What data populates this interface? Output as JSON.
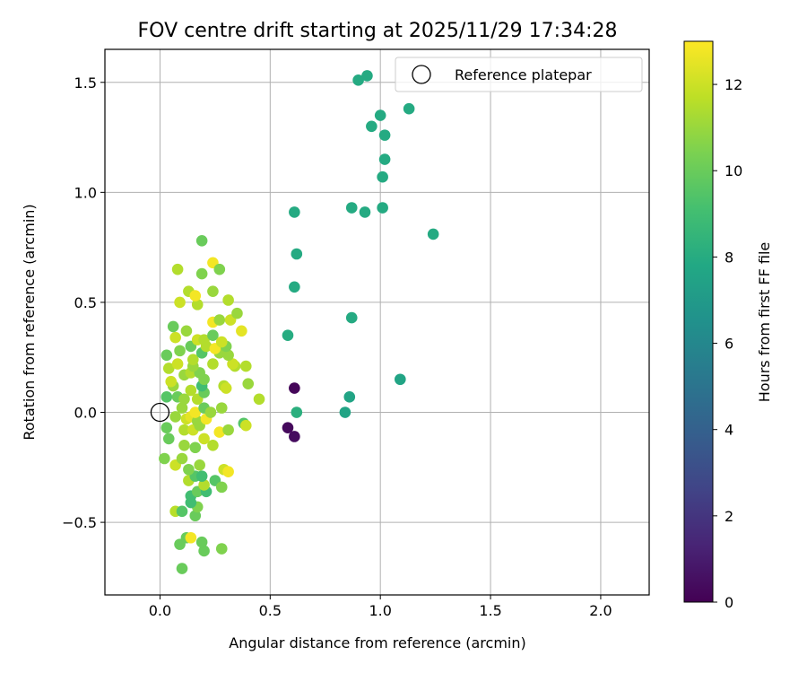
{
  "chart_data": {
    "type": "scatter",
    "title": "FOV centre drift starting at 2025/11/29 17:34:28",
    "xlabel": "Angular distance from reference (arcmin)",
    "ylabel": "Rotation from reference (arcmin)",
    "xlim": [
      -0.25,
      2.22
    ],
    "ylim": [
      -0.83,
      1.65
    ],
    "xticks": [
      0.0,
      0.5,
      1.0,
      1.5,
      2.0
    ],
    "yticks": [
      -0.5,
      0.0,
      0.5,
      1.0,
      1.5
    ],
    "xtick_labels": [
      "0.0",
      "0.5",
      "1.0",
      "1.5",
      "2.0"
    ],
    "ytick_labels": [
      "−0.5",
      "0.0",
      "0.5",
      "1.0",
      "1.5"
    ],
    "grid": true,
    "legend": {
      "placement": "upper-right",
      "entries": [
        "Reference platepar"
      ]
    },
    "reference_point": {
      "x": 0.0,
      "y": 0.0,
      "label": "Reference platepar"
    },
    "colorbar": {
      "label": "Hours from first FF file",
      "range": [
        0,
        13
      ],
      "ticks": [
        0,
        2,
        4,
        6,
        8,
        10,
        12
      ],
      "tick_labels": [
        "0",
        "2",
        "4",
        "6",
        "8",
        "10",
        "12"
      ],
      "colormap": "viridis"
    },
    "points": [
      [
        0.61,
        0.11,
        0.2
      ],
      [
        0.58,
        -0.07,
        0.3
      ],
      [
        0.61,
        -0.11,
        0.4
      ],
      [
        0.84,
        0.0,
        7.6
      ],
      [
        0.86,
        0.07,
        7.6
      ],
      [
        1.09,
        0.15,
        7.6
      ],
      [
        0.62,
        0.0,
        8.2
      ],
      [
        0.58,
        0.35,
        8.0
      ],
      [
        0.87,
        0.43,
        7.9
      ],
      [
        0.61,
        0.57,
        7.9
      ],
      [
        0.62,
        0.72,
        7.9
      ],
      [
        0.61,
        0.91,
        7.9
      ],
      [
        0.87,
        0.93,
        7.9
      ],
      [
        0.93,
        0.91,
        7.9
      ],
      [
        1.01,
        0.93,
        7.9
      ],
      [
        1.24,
        0.81,
        7.9
      ],
      [
        1.01,
        1.07,
        7.9
      ],
      [
        1.02,
        1.15,
        7.9
      ],
      [
        1.02,
        1.26,
        7.9
      ],
      [
        0.96,
        1.3,
        7.9
      ],
      [
        1.0,
        1.35,
        7.9
      ],
      [
        1.13,
        1.38,
        7.9
      ],
      [
        0.9,
        1.51,
        7.9
      ],
      [
        0.94,
        1.53,
        7.9
      ],
      [
        0.2,
        -0.63,
        10.0
      ],
      [
        0.28,
        -0.62,
        10.5
      ],
      [
        0.1,
        -0.71,
        10.0
      ],
      [
        0.09,
        -0.6,
        10.0
      ],
      [
        0.19,
        -0.59,
        10.0
      ],
      [
        0.12,
        -0.57,
        10.0
      ],
      [
        0.14,
        -0.57,
        12.8
      ],
      [
        0.07,
        -0.45,
        11.6
      ],
      [
        0.1,
        -0.45,
        9.5
      ],
      [
        0.16,
        -0.47,
        10.0
      ],
      [
        0.17,
        -0.43,
        10.5
      ],
      [
        0.14,
        -0.41,
        9.0
      ],
      [
        0.14,
        -0.38,
        9.0
      ],
      [
        0.17,
        -0.36,
        10.0
      ],
      [
        0.21,
        -0.36,
        9.0
      ],
      [
        0.2,
        -0.33,
        11.5
      ],
      [
        0.25,
        -0.31,
        9.5
      ],
      [
        0.28,
        -0.34,
        10.5
      ],
      [
        0.13,
        -0.31,
        11.5
      ],
      [
        0.16,
        -0.29,
        9.5
      ],
      [
        0.19,
        -0.29,
        9.0
      ],
      [
        0.29,
        -0.26,
        12.0
      ],
      [
        0.31,
        -0.27,
        12.8
      ],
      [
        0.13,
        -0.26,
        10.5
      ],
      [
        0.18,
        -0.24,
        11.0
      ],
      [
        0.07,
        -0.24,
        12.0
      ],
      [
        0.02,
        -0.21,
        10.5
      ],
      [
        0.1,
        -0.21,
        11.0
      ],
      [
        0.11,
        -0.15,
        11.0
      ],
      [
        0.16,
        -0.16,
        10.5
      ],
      [
        0.24,
        -0.15,
        11.5
      ],
      [
        0.2,
        -0.12,
        12.0
      ],
      [
        0.04,
        -0.12,
        10.0
      ],
      [
        0.03,
        -0.07,
        10.0
      ],
      [
        0.11,
        -0.08,
        11.5
      ],
      [
        0.15,
        -0.08,
        12.0
      ],
      [
        0.18,
        -0.06,
        11.0
      ],
      [
        0.27,
        -0.09,
        12.8
      ],
      [
        0.31,
        -0.08,
        11.0
      ],
      [
        0.38,
        -0.05,
        9.5
      ],
      [
        0.39,
        -0.06,
        12.0
      ],
      [
        0.07,
        -0.02,
        11.0
      ],
      [
        0.12,
        -0.03,
        12.0
      ],
      [
        0.14,
        -0.02,
        12.5
      ],
      [
        0.17,
        -0.04,
        11.0
      ],
      [
        0.21,
        -0.03,
        12.8
      ],
      [
        0.1,
        0.02,
        11.0
      ],
      [
        0.16,
        0.0,
        12.8
      ],
      [
        0.2,
        0.02,
        10.0
      ],
      [
        0.23,
        0.0,
        11.0
      ],
      [
        0.28,
        0.02,
        11.0
      ],
      [
        0.45,
        0.06,
        11.5
      ],
      [
        0.03,
        0.07,
        9.5
      ],
      [
        0.08,
        0.07,
        10.0
      ],
      [
        0.11,
        0.06,
        11.0
      ],
      [
        0.17,
        0.06,
        11.5
      ],
      [
        0.2,
        0.09,
        10.0
      ],
      [
        0.06,
        0.12,
        11.0
      ],
      [
        0.14,
        0.1,
        11.5
      ],
      [
        0.19,
        0.12,
        9.0
      ],
      [
        0.2,
        0.15,
        10.5
      ],
      [
        0.29,
        0.12,
        11.5
      ],
      [
        0.3,
        0.11,
        12.0
      ],
      [
        0.4,
        0.13,
        11.0
      ],
      [
        0.05,
        0.14,
        12.0
      ],
      [
        0.11,
        0.17,
        11.0
      ],
      [
        0.14,
        0.18,
        11.5
      ],
      [
        0.18,
        0.18,
        10.5
      ],
      [
        0.04,
        0.2,
        11.5
      ],
      [
        0.08,
        0.22,
        12.0
      ],
      [
        0.15,
        0.21,
        11.0
      ],
      [
        0.24,
        0.22,
        11.5
      ],
      [
        0.34,
        0.21,
        11.5
      ],
      [
        0.39,
        0.21,
        11.5
      ],
      [
        0.33,
        0.22,
        12.0
      ],
      [
        0.03,
        0.26,
        10.0
      ],
      [
        0.15,
        0.24,
        11.5
      ],
      [
        0.19,
        0.27,
        9.5
      ],
      [
        0.27,
        0.27,
        11.0
      ],
      [
        0.31,
        0.26,
        11.0
      ],
      [
        0.09,
        0.28,
        10.5
      ],
      [
        0.14,
        0.3,
        10.0
      ],
      [
        0.21,
        0.3,
        11.5
      ],
      [
        0.25,
        0.29,
        12.8
      ],
      [
        0.3,
        0.3,
        10.5
      ],
      [
        0.17,
        0.33,
        12.0
      ],
      [
        0.2,
        0.33,
        11.5
      ],
      [
        0.24,
        0.35,
        10.0
      ],
      [
        0.07,
        0.34,
        12.0
      ],
      [
        0.28,
        0.32,
        12.0
      ],
      [
        0.06,
        0.39,
        10.0
      ],
      [
        0.12,
        0.37,
        11.0
      ],
      [
        0.24,
        0.41,
        12.8
      ],
      [
        0.27,
        0.42,
        11.0
      ],
      [
        0.32,
        0.42,
        12.0
      ],
      [
        0.37,
        0.37,
        12.5
      ],
      [
        0.35,
        0.45,
        11.0
      ],
      [
        0.09,
        0.5,
        12.0
      ],
      [
        0.17,
        0.49,
        11.5
      ],
      [
        0.13,
        0.55,
        11.5
      ],
      [
        0.16,
        0.53,
        12.8
      ],
      [
        0.24,
        0.55,
        11.0
      ],
      [
        0.31,
        0.51,
        11.5
      ],
      [
        0.08,
        0.65,
        11.5
      ],
      [
        0.19,
        0.63,
        10.5
      ],
      [
        0.24,
        0.68,
        12.8
      ],
      [
        0.27,
        0.65,
        10.5
      ],
      [
        0.19,
        0.78,
        10.0
      ]
    ]
  }
}
